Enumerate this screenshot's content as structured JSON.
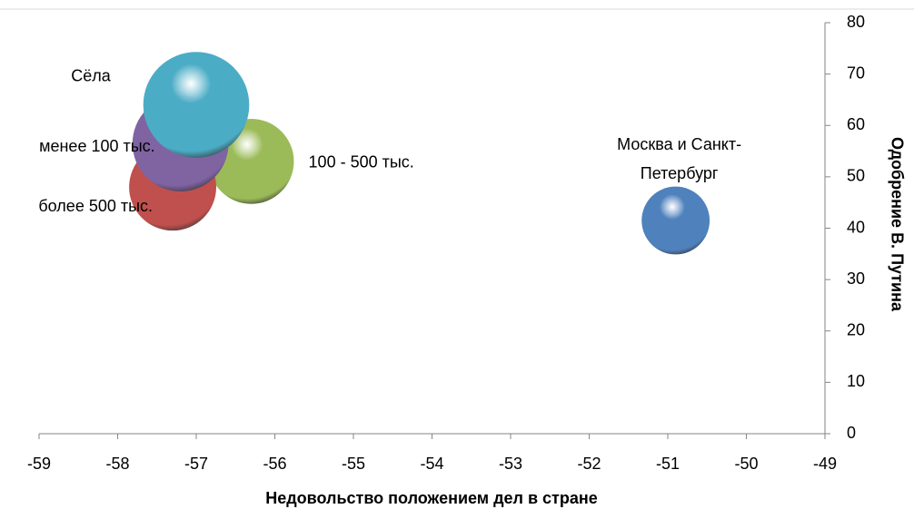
{
  "chart_data": {
    "type": "bubble",
    "xlabel": "Недовольство положением дел в стране",
    "ylabel": "Одобрение В. Путина",
    "xlim": [
      -59,
      -49
    ],
    "xticks": [
      -59,
      -58,
      -57,
      -56,
      -55,
      -54,
      -53,
      -52,
      -51,
      -50,
      -49
    ],
    "ylim": [
      0,
      80
    ],
    "yticks": [
      0,
      10,
      20,
      30,
      40,
      50,
      60,
      70,
      80
    ],
    "points": [
      {
        "label": "Москва и Санкт-Петербург",
        "x": -50.9,
        "y": 41.5,
        "size": 14,
        "color": "#4f81bd"
      },
      {
        "label": "100 - 500 тыс.",
        "x": -56.3,
        "y": 53,
        "size": 22,
        "color": "#9bbb59"
      },
      {
        "label": "более 500 тыс.",
        "x": -57.3,
        "y": 48,
        "size": 23,
        "color": "#c0504d"
      },
      {
        "label": "менее 100 тыс.",
        "x": -57.2,
        "y": 56.5,
        "size": 28,
        "color": "#8064a2"
      },
      {
        "label": "Сёла",
        "x": -57.0,
        "y": 64,
        "size": 34,
        "color": "#4bacc6"
      }
    ]
  }
}
